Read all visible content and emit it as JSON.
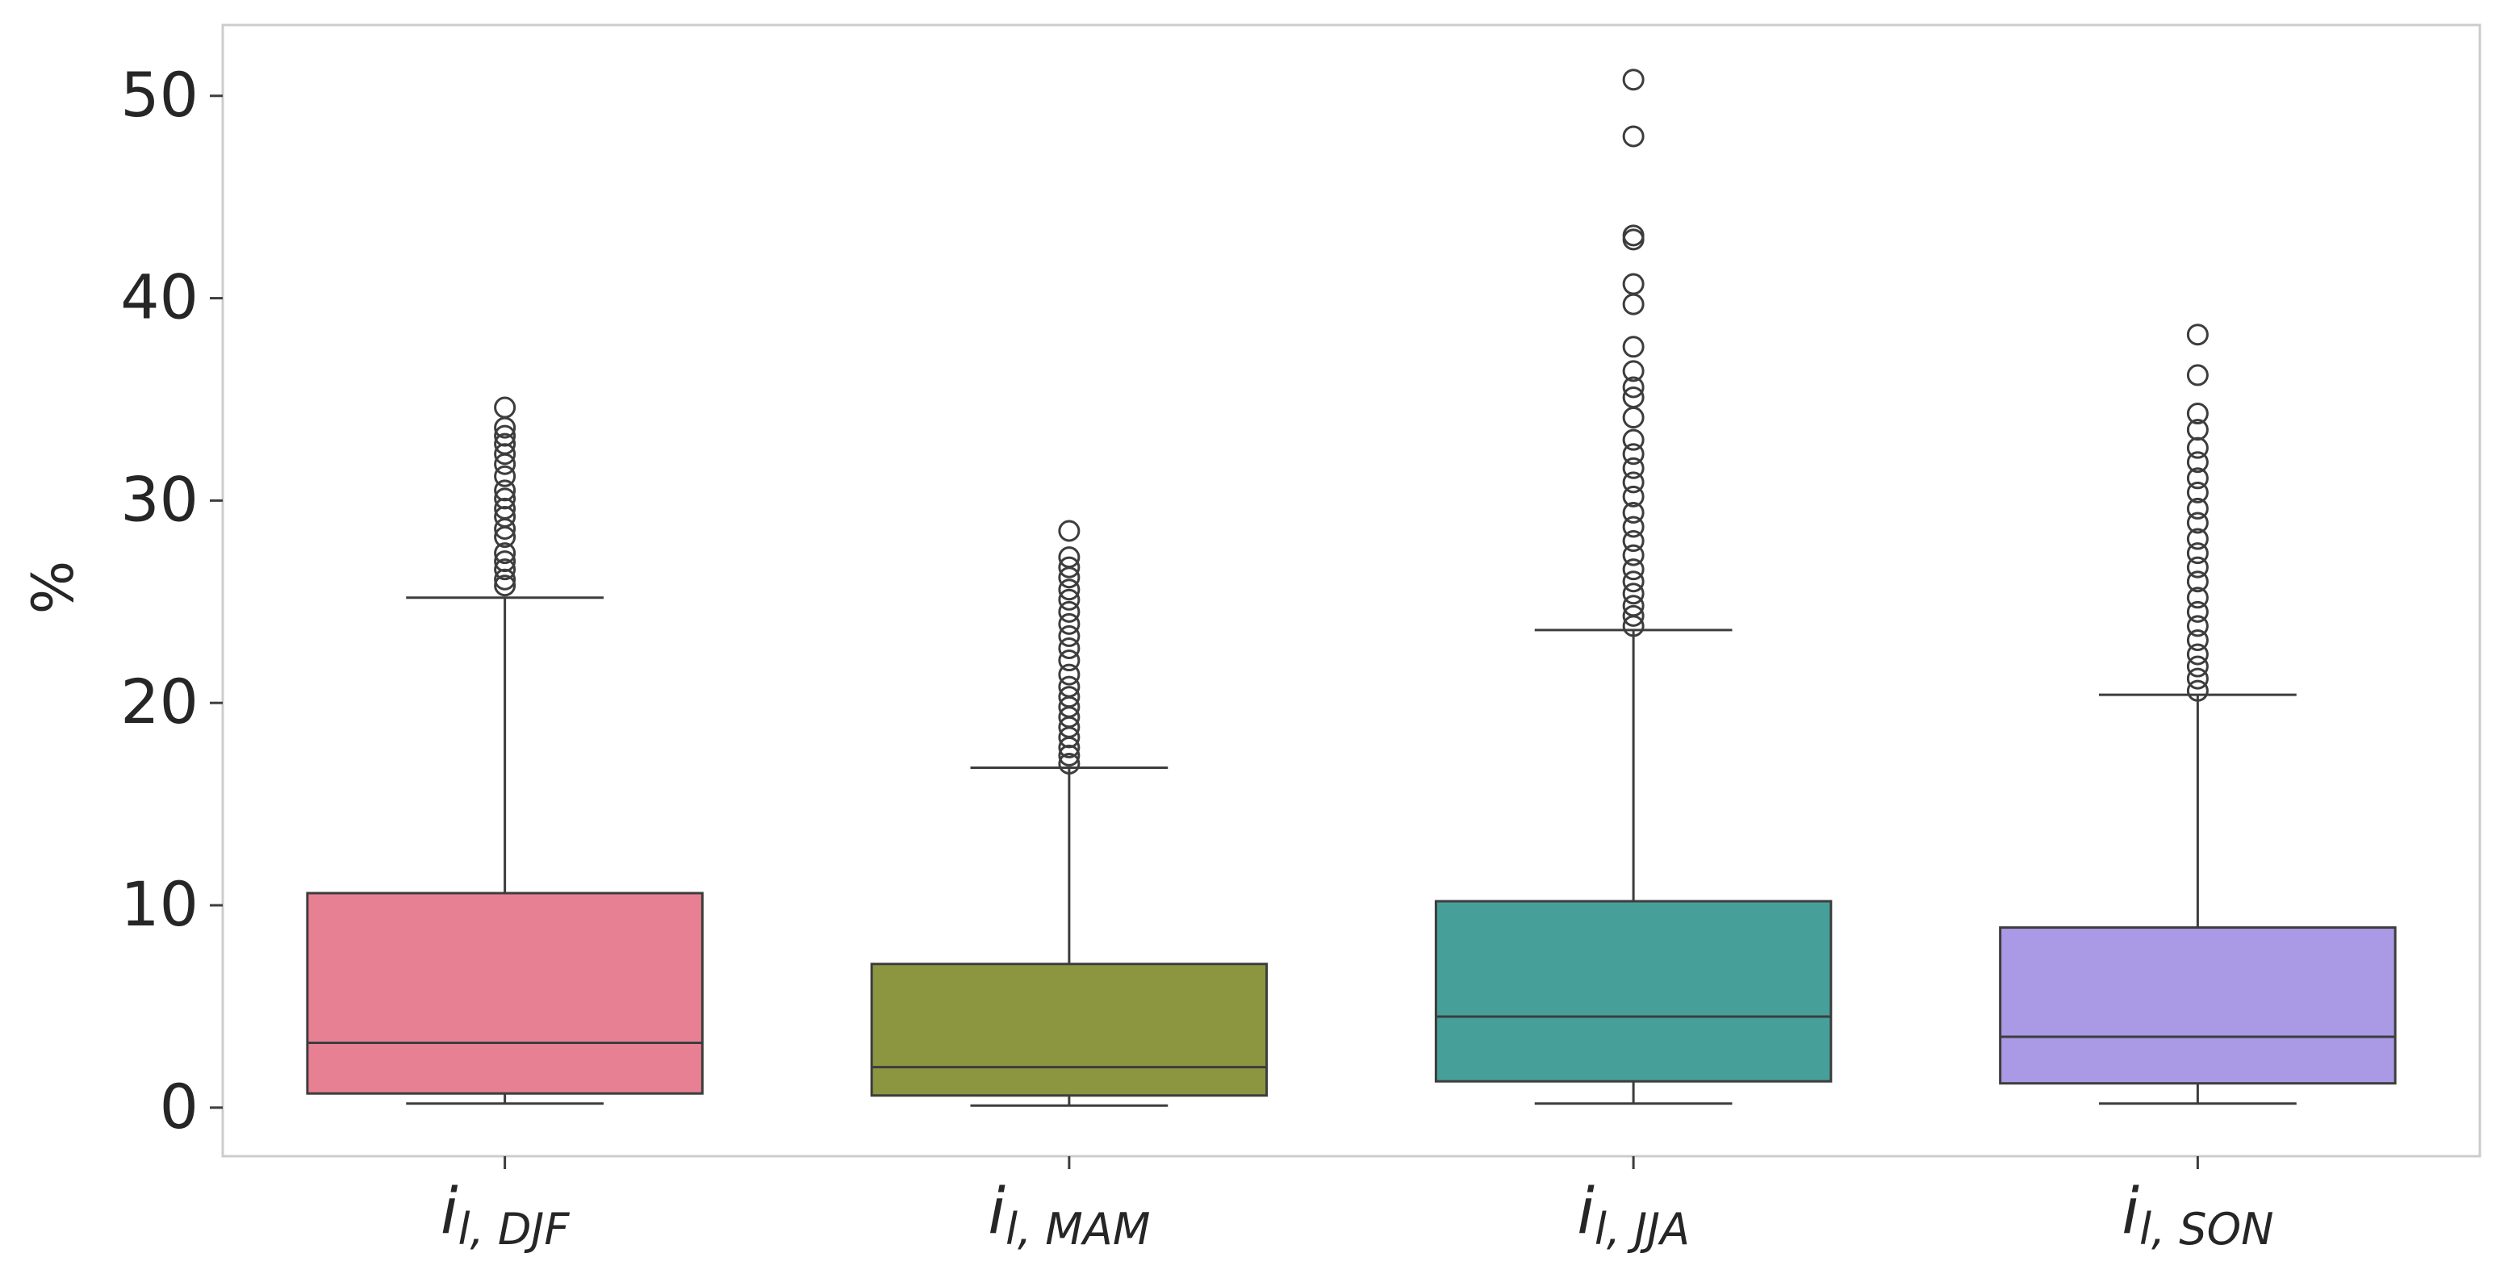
{
  "chart_data": {
    "type": "box",
    "ylabel": "%",
    "xlabel": "",
    "ylim": [
      -2.4,
      53.5
    ],
    "yticks": [
      0,
      10,
      20,
      30,
      40,
      50
    ],
    "grid": false,
    "categories": [
      {
        "base": "i",
        "sub": "l, DJF",
        "color": "#e88093"
      },
      {
        "base": "i",
        "sub": "l, MAM",
        "color": "#8c9540"
      },
      {
        "base": "i",
        "sub": "l, JJA",
        "color": "#46a099"
      },
      {
        "base": "i",
        "sub": "l, SON",
        "color": "#aa9ae6"
      }
    ],
    "boxes": [
      {
        "whisker_low": 0.2,
        "q1": 0.7,
        "median": 3.2,
        "q3": 10.6,
        "whisker_high": 25.2,
        "outliers": [
          25.8,
          26.1,
          26.6,
          27.0,
          27.4,
          28.2,
          28.6,
          29.2,
          29.6,
          30.1,
          30.5,
          31.2,
          31.8,
          32.3,
          32.8,
          33.2,
          33.6,
          34.6
        ]
      },
      {
        "whisker_low": 0.1,
        "q1": 0.6,
        "median": 2.0,
        "q3": 7.1,
        "whisker_high": 16.8,
        "outliers": [
          17.0,
          17.4,
          17.8,
          18.3,
          18.8,
          19.3,
          19.8,
          20.3,
          20.8,
          21.4,
          22.1,
          22.7,
          23.3,
          23.9,
          24.5,
          25.1,
          25.6,
          26.2,
          26.7,
          27.2,
          28.5
        ]
      },
      {
        "whisker_low": 0.2,
        "q1": 1.3,
        "median": 4.5,
        "q3": 10.2,
        "whisker_high": 23.6,
        "outliers": [
          23.8,
          24.3,
          24.8,
          25.4,
          26.0,
          26.6,
          27.3,
          28.0,
          28.7,
          29.4,
          30.2,
          30.9,
          31.6,
          32.3,
          33.0,
          34.1,
          35.1,
          35.6,
          36.4,
          37.6,
          39.7,
          40.7,
          42.9,
          43.1,
          48.0,
          50.8
        ]
      },
      {
        "whisker_low": 0.2,
        "q1": 1.2,
        "median": 3.5,
        "q3": 8.9,
        "whisker_high": 20.4,
        "outliers": [
          20.6,
          21.2,
          21.8,
          22.4,
          23.1,
          23.8,
          24.5,
          25.2,
          26.0,
          26.7,
          27.4,
          28.1,
          28.9,
          29.6,
          30.4,
          31.1,
          31.9,
          32.6,
          33.5,
          34.3,
          36.2,
          38.2
        ]
      }
    ]
  }
}
